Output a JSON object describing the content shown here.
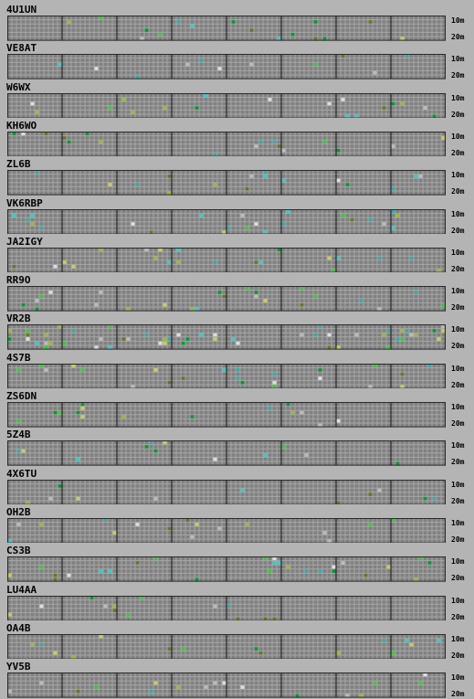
{
  "band_labels": {
    "top": "10m",
    "bottom": "20m"
  },
  "grid": {
    "columns": 96,
    "rows": 6,
    "major_every": 12
  },
  "colors": {
    "background": "#b4b4b4",
    "grid_cell": "#808080",
    "grid_line": "#a6a6a6",
    "major_line": "#2a2a2a",
    "heard_strong": "#33cc33",
    "heard_medium": "#009933",
    "heard_weak": "#99bb33",
    "heard_olive": "#667722",
    "heard_yellow": "#cccc55",
    "heard_cyan": "#33cccc",
    "heard_teal": "#33aaaa",
    "heard_white": "#dddddd",
    "heard_pale": "#bbbbbb"
  },
  "palette": [
    "#33cc33",
    "#009933",
    "#99bb33",
    "#667722",
    "#cccc55",
    "#33cccc",
    "#33aaaa",
    "#dddddd",
    "#bbbbbb"
  ],
  "stations": [
    {
      "call": "4U1UN",
      "density": 0.03,
      "seed": 11
    },
    {
      "call": "VE8AT",
      "density": 0.02,
      "seed": 23
    },
    {
      "call": "W6WX",
      "density": 0.03,
      "seed": 37
    },
    {
      "call": "KH6WO",
      "density": 0.035,
      "seed": 41
    },
    {
      "call": "ZL6B",
      "density": 0.03,
      "seed": 53
    },
    {
      "call": "VK6RBP",
      "density": 0.025,
      "seed": 67
    },
    {
      "call": "JA2IGY",
      "density": 0.035,
      "seed": 71
    },
    {
      "call": "RR9O",
      "density": 0.035,
      "seed": 83
    },
    {
      "call": "VR2B",
      "density": 0.08,
      "seed": 97
    },
    {
      "call": "4S7B",
      "density": 0.04,
      "seed": 101
    },
    {
      "call": "ZS6DN",
      "density": 0.03,
      "seed": 113
    },
    {
      "call": "5Z4B",
      "density": 0.025,
      "seed": 127
    },
    {
      "call": "4X6TU",
      "density": 0.02,
      "seed": 131
    },
    {
      "call": "OH2B",
      "density": 0.035,
      "seed": 149
    },
    {
      "call": "CS3B",
      "density": 0.03,
      "seed": 151
    },
    {
      "call": "LU4AA",
      "density": 0.03,
      "seed": 163
    },
    {
      "call": "OA4B",
      "density": 0.03,
      "seed": 173
    },
    {
      "call": "YV5B",
      "density": 0.025,
      "seed": 181
    }
  ]
}
